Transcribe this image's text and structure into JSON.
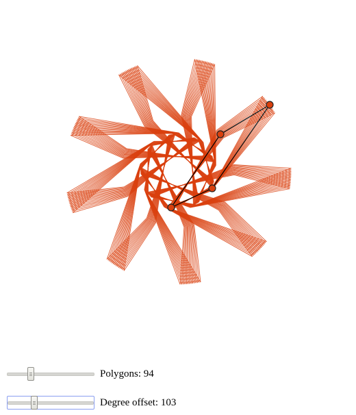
{
  "controls": {
    "polygons": {
      "label": "Polygons: 94",
      "value": 94,
      "slider_fraction": 0.27
    },
    "degree_offset": {
      "label": "Degree offset: 103",
      "value": 103,
      "slider_fraction": 0.31
    }
  },
  "figure": {
    "stroke_color": "#d9400e",
    "handle_fill": "#d9400e",
    "handle_stroke": "#222222",
    "control_line_color": "#000000"
  }
}
